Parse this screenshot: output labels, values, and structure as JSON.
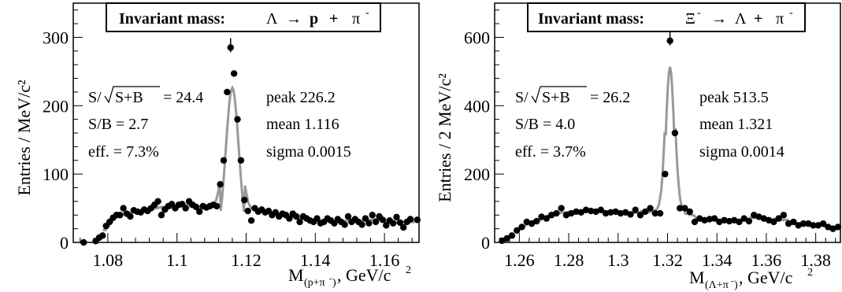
{
  "chart_data": [
    {
      "type": "scatter",
      "title": "Invariant mass:",
      "reaction": {
        "parent": "Λ",
        "arrow": "→",
        "daughter1": "p",
        "plus": "+",
        "daughter2": "π",
        "charge": "-"
      },
      "ylabel": "Entries / MeV/c²",
      "xlabel": {
        "main": "M",
        "sub": "(p+π",
        "subsup": "-",
        "subclose": ")",
        "unit": ", GeV/c",
        "unitsup": "2"
      },
      "xlim": [
        1.07,
        1.17
      ],
      "ylim": [
        0,
        350
      ],
      "xticks": [
        "1.08",
        "1.1",
        "1.12",
        "1.14",
        "1.16"
      ],
      "xtick_values": [
        1.08,
        1.1,
        1.12,
        1.14,
        1.16
      ],
      "yticks": [
        "0",
        "100",
        "200",
        "300"
      ],
      "ytick_values": [
        0,
        100,
        200,
        300
      ],
      "stats": {
        "significance_label": "S/",
        "significance_arg": "S+B",
        "significance_value": "= 24.4",
        "sb": "S/B = 2.7",
        "eff": "eff. = 7.3%",
        "peak": "peak  226.2",
        "mean": "mean  1.116",
        "sigma": "sigma 0.0015"
      },
      "fit": {
        "mean": 1.116,
        "sigma": 0.0015,
        "peak": 226.2
      },
      "series": [
        {
          "values": [
            [
              1.073,
              0
            ],
            [
              1.0765,
              2
            ],
            [
              1.0775,
              7
            ],
            [
              1.0785,
              10
            ],
            [
              1.0795,
              24
            ],
            [
              1.0805,
              30
            ],
            [
              1.0815,
              36
            ],
            [
              1.0825,
              40
            ],
            [
              1.0835,
              40
            ],
            [
              1.0845,
              50
            ],
            [
              1.0855,
              42
            ],
            [
              1.0865,
              38
            ],
            [
              1.0875,
              47
            ],
            [
              1.0885,
              45
            ],
            [
              1.0895,
              44
            ],
            [
              1.0905,
              48
            ],
            [
              1.0915,
              46
            ],
            [
              1.0925,
              50
            ],
            [
              1.0935,
              55
            ],
            [
              1.0945,
              60
            ],
            [
              1.0955,
              40
            ],
            [
              1.0965,
              48
            ],
            [
              1.0975,
              53
            ],
            [
              1.0985,
              56
            ],
            [
              1.0995,
              50
            ],
            [
              1.1005,
              55
            ],
            [
              1.1015,
              56
            ],
            [
              1.1025,
              50
            ],
            [
              1.1035,
              60
            ],
            [
              1.1045,
              55
            ],
            [
              1.1055,
              52
            ],
            [
              1.1065,
              45
            ],
            [
              1.1075,
              53
            ],
            [
              1.1085,
              51
            ],
            [
              1.1095,
              53
            ],
            [
              1.1105,
              55
            ],
            [
              1.1115,
              53
            ],
            [
              1.1125,
              85
            ],
            [
              1.1135,
              120
            ],
            [
              1.1145,
              220
            ],
            [
              1.1155,
              285
            ],
            [
              1.1165,
              247
            ],
            [
              1.1175,
              180
            ],
            [
              1.1185,
              120
            ],
            [
              1.1195,
              62
            ],
            [
              1.1205,
              46
            ],
            [
              1.1215,
              32
            ],
            [
              1.1225,
              50
            ],
            [
              1.1235,
              45
            ],
            [
              1.1245,
              48
            ],
            [
              1.1255,
              44
            ],
            [
              1.1265,
              46
            ],
            [
              1.1275,
              40
            ],
            [
              1.1285,
              44
            ],
            [
              1.1295,
              38
            ],
            [
              1.1305,
              42
            ],
            [
              1.1315,
              40
            ],
            [
              1.1325,
              35
            ],
            [
              1.1335,
              42
            ],
            [
              1.1345,
              38
            ],
            [
              1.1355,
              30
            ],
            [
              1.1365,
              38
            ],
            [
              1.1375,
              35
            ],
            [
              1.1385,
              32
            ],
            [
              1.1395,
              30
            ],
            [
              1.1405,
              35
            ],
            [
              1.1415,
              28
            ],
            [
              1.1425,
              30
            ],
            [
              1.1435,
              35
            ],
            [
              1.1445,
              32
            ],
            [
              1.1455,
              28
            ],
            [
              1.1465,
              34
            ],
            [
              1.1475,
              30
            ],
            [
              1.1485,
              26
            ],
            [
              1.1495,
              38
            ],
            [
              1.1505,
              30
            ],
            [
              1.1515,
              34
            ],
            [
              1.1525,
              30
            ],
            [
              1.1535,
              26
            ],
            [
              1.1545,
              35
            ],
            [
              1.1555,
              28
            ],
            [
              1.1565,
              40
            ],
            [
              1.1575,
              30
            ],
            [
              1.1585,
              38
            ],
            [
              1.1595,
              33
            ],
            [
              1.1605,
              25
            ],
            [
              1.1615,
              32
            ],
            [
              1.1625,
              28
            ],
            [
              1.1635,
              37
            ],
            [
              1.1645,
              29
            ],
            [
              1.1655,
              22
            ],
            [
              1.1665,
              30
            ],
            [
              1.1675,
              34
            ],
            [
              1.1695,
              33
            ]
          ]
        }
      ]
    },
    {
      "type": "scatter",
      "title": "Invariant mass:",
      "reaction": {
        "parent": "Ξ",
        "parentcharge": "-",
        "arrow": "→",
        "daughter1": "Λ",
        "plus": "+",
        "daughter2": "π",
        "charge": "-"
      },
      "ylabel": "Entries / 2 MeV/c²",
      "xlabel": {
        "main": "M",
        "sub": "(Λ+π",
        "subsup": "-",
        "subclose": ")",
        "unit": ", GeV/c",
        "unitsup": "2"
      },
      "xlim": [
        1.25,
        1.39
      ],
      "ylim": [
        0,
        700
      ],
      "xticks": [
        "1.26",
        "1.28",
        "1.3",
        "1.32",
        "1.34",
        "1.36",
        "1.38"
      ],
      "xtick_values": [
        1.26,
        1.28,
        1.3,
        1.32,
        1.34,
        1.36,
        1.38
      ],
      "yticks": [
        "0",
        "200",
        "400",
        "600"
      ],
      "ytick_values": [
        0,
        200,
        400,
        600
      ],
      "stats": {
        "significance_label": "S/",
        "significance_arg": "S+B",
        "significance_value": "= 26.2",
        "sb": "S/B = 4.0",
        "eff": "eff. = 3.7%",
        "peak": "peak  513.5",
        "mean": "mean  1.321",
        "sigma": "sigma 0.0014"
      },
      "fit": {
        "mean": 1.321,
        "sigma": 0.0014,
        "peak": 513.5
      },
      "series": [
        {
          "values": [
            [
              1.253,
              5
            ],
            [
              1.255,
              12
            ],
            [
              1.257,
              20
            ],
            [
              1.259,
              35
            ],
            [
              1.261,
              45
            ],
            [
              1.263,
              60
            ],
            [
              1.265,
              55
            ],
            [
              1.267,
              62
            ],
            [
              1.269,
              75
            ],
            [
              1.271,
              70
            ],
            [
              1.273,
              80
            ],
            [
              1.275,
              85
            ],
            [
              1.277,
              100
            ],
            [
              1.279,
              80
            ],
            [
              1.281,
              85
            ],
            [
              1.283,
              90
            ],
            [
              1.285,
              88
            ],
            [
              1.287,
              95
            ],
            [
              1.289,
              92
            ],
            [
              1.291,
              90
            ],
            [
              1.293,
              95
            ],
            [
              1.295,
              85
            ],
            [
              1.297,
              88
            ],
            [
              1.299,
              90
            ],
            [
              1.301,
              85
            ],
            [
              1.303,
              88
            ],
            [
              1.305,
              82
            ],
            [
              1.307,
              95
            ],
            [
              1.309,
              80
            ],
            [
              1.311,
              90
            ],
            [
              1.313,
              100
            ],
            [
              1.315,
              85
            ],
            [
              1.317,
              85
            ],
            [
              1.319,
              200
            ],
            [
              1.321,
              590
            ],
            [
              1.323,
              320
            ],
            [
              1.325,
              100
            ],
            [
              1.327,
              100
            ],
            [
              1.329,
              90
            ],
            [
              1.331,
              60
            ],
            [
              1.333,
              70
            ],
            [
              1.335,
              65
            ],
            [
              1.337,
              68
            ],
            [
              1.339,
              70
            ],
            [
              1.341,
              60
            ],
            [
              1.343,
              65
            ],
            [
              1.345,
              62
            ],
            [
              1.347,
              65
            ],
            [
              1.349,
              60
            ],
            [
              1.351,
              70
            ],
            [
              1.353,
              62
            ],
            [
              1.355,
              80
            ],
            [
              1.357,
              75
            ],
            [
              1.359,
              70
            ],
            [
              1.361,
              65
            ],
            [
              1.363,
              60
            ],
            [
              1.365,
              70
            ],
            [
              1.367,
              80
            ],
            [
              1.369,
              55
            ],
            [
              1.371,
              60
            ],
            [
              1.373,
              50
            ],
            [
              1.375,
              55
            ],
            [
              1.377,
              55
            ],
            [
              1.379,
              50
            ],
            [
              1.381,
              50
            ],
            [
              1.383,
              55
            ],
            [
              1.385,
              45
            ],
            [
              1.387,
              40
            ],
            [
              1.389,
              45
            ]
          ]
        }
      ]
    }
  ]
}
